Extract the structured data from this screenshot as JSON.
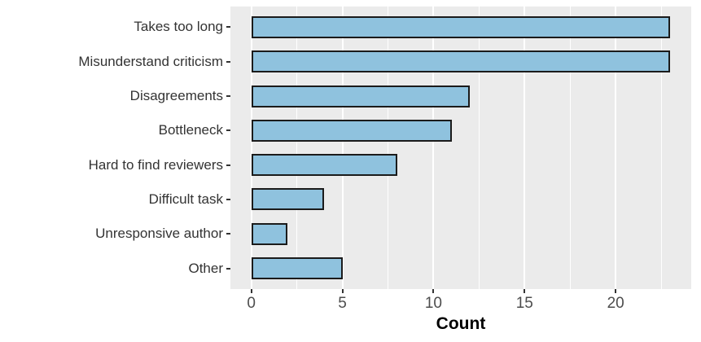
{
  "chart_data": {
    "type": "bar",
    "orientation": "horizontal",
    "title": "",
    "xlabel": "Count",
    "ylabel": "",
    "categories": [
      "Takes too long",
      "Misunderstand criticism",
      "Disagreements",
      "Bottleneck",
      "Hard to find reviewers",
      "Difficult task",
      "Unresponsive author",
      "Other"
    ],
    "values": [
      23,
      23,
      12,
      11,
      8,
      4,
      2,
      5
    ],
    "x_ticks": [
      0,
      5,
      10,
      15,
      20
    ],
    "x_minor_ticks": [
      2.5,
      7.5,
      12.5,
      17.5,
      22.5
    ],
    "xlim": [
      -1.15,
      24.15
    ],
    "grid": true,
    "legend": "none",
    "colors": {
      "bar_fill": "#8fc2de",
      "bar_stroke": "#1b1b1b",
      "panel_bg": "#ebebeb",
      "grid": "#ffffff",
      "tick_label": "#4d4d4d",
      "category_label": "#333333",
      "axis_title": "#000000"
    }
  }
}
